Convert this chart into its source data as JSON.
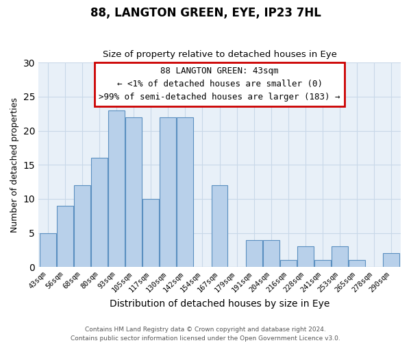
{
  "title": "88, LANGTON GREEN, EYE, IP23 7HL",
  "subtitle": "Size of property relative to detached houses in Eye",
  "xlabel": "Distribution of detached houses by size in Eye",
  "ylabel": "Number of detached properties",
  "bar_color": "#b8d0ea",
  "bar_edge_color": "#5a8fc0",
  "categories": [
    "43sqm",
    "56sqm",
    "68sqm",
    "80sqm",
    "93sqm",
    "105sqm",
    "117sqm",
    "130sqm",
    "142sqm",
    "154sqm",
    "167sqm",
    "179sqm",
    "191sqm",
    "204sqm",
    "216sqm",
    "228sqm",
    "241sqm",
    "253sqm",
    "265sqm",
    "278sqm",
    "290sqm"
  ],
  "values": [
    5,
    9,
    12,
    16,
    23,
    22,
    10,
    22,
    22,
    0,
    12,
    0,
    4,
    4,
    1,
    3,
    1,
    3,
    1,
    0,
    2
  ],
  "ylim": [
    0,
    30
  ],
  "yticks": [
    0,
    5,
    10,
    15,
    20,
    25,
    30
  ],
  "annotation_text_line1": "88 LANGTON GREEN: 43sqm",
  "annotation_text_line2": "← <1% of detached houses are smaller (0)",
  "annotation_text_line3": ">99% of semi-detached houses are larger (183) →",
  "annotation_box_color": "#ffffff",
  "annotation_box_edge_color": "#cc0000",
  "footnote1": "Contains HM Land Registry data © Crown copyright and database right 2024.",
  "footnote2": "Contains public sector information licensed under the Open Government Licence v3.0.",
  "highlight_bar_edge_color": "#cc0000",
  "grid_color": "#c8d8e8",
  "bg_color": "#e8f0f8"
}
